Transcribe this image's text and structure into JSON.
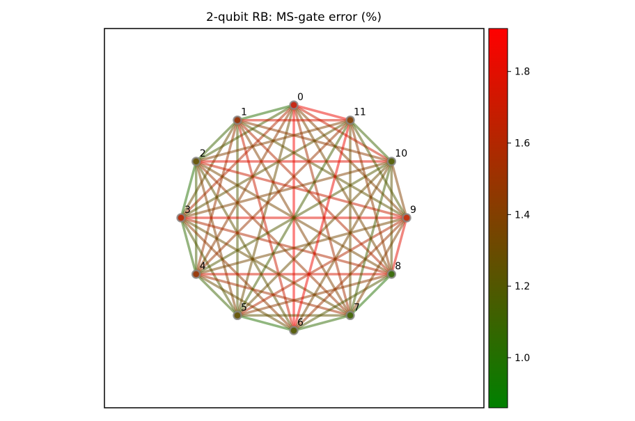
{
  "title": "2-qubit RB: MS-gate error (%)",
  "nodes": [
    "0",
    "1",
    "2",
    "3",
    "4",
    "5",
    "6",
    "7",
    "8",
    "9",
    "10",
    "11"
  ],
  "node_colors": {
    "0": "#c62a16",
    "1": "#9a3a10",
    "2": "#6b5a10",
    "3": "#b8320f",
    "4": "#9a3d10",
    "5": "#6a5a10",
    "6": "#5a6010",
    "7": "#4a6a10",
    "8": "#3f6e12",
    "9": "#c43614",
    "10": "#5a6410",
    "11": "#8a4a12"
  },
  "colorbar": {
    "min": 0.86,
    "max": 1.92,
    "low_color": "#008000",
    "high_color": "#ff0000",
    "ticks": [
      "1.0",
      "1.2",
      "1.4",
      "1.6",
      "1.8"
    ],
    "tick_values": [
      1.0,
      1.2,
      1.4,
      1.6,
      1.8
    ]
  },
  "edges": [
    [
      0,
      1,
      1.02
    ],
    [
      0,
      2,
      1.15
    ],
    [
      0,
      3,
      1.6
    ],
    [
      0,
      4,
      1.45
    ],
    [
      0,
      5,
      1.3
    ],
    [
      0,
      6,
      1.9
    ],
    [
      0,
      7,
      1.55
    ],
    [
      0,
      8,
      1.35
    ],
    [
      0,
      9,
      1.4
    ],
    [
      0,
      10,
      1.7
    ],
    [
      0,
      11,
      1.85
    ],
    [
      1,
      2,
      1.1
    ],
    [
      1,
      3,
      1.3
    ],
    [
      1,
      4,
      1.5
    ],
    [
      1,
      5,
      1.2
    ],
    [
      1,
      6,
      1.7
    ],
    [
      1,
      7,
      1.4
    ],
    [
      1,
      8,
      1.6
    ],
    [
      1,
      9,
      1.25
    ],
    [
      1,
      10,
      1.45
    ],
    [
      1,
      11,
      1.75
    ],
    [
      2,
      3,
      1.0
    ],
    [
      2,
      4,
      1.15
    ],
    [
      2,
      5,
      1.4
    ],
    [
      2,
      6,
      1.25
    ],
    [
      2,
      7,
      1.5
    ],
    [
      2,
      8,
      1.35
    ],
    [
      2,
      9,
      1.7
    ],
    [
      2,
      10,
      1.8
    ],
    [
      2,
      11,
      1.4
    ],
    [
      3,
      4,
      1.05
    ],
    [
      3,
      5,
      1.2
    ],
    [
      3,
      6,
      1.45
    ],
    [
      3,
      7,
      1.3
    ],
    [
      3,
      8,
      1.6
    ],
    [
      3,
      9,
      1.8
    ],
    [
      3,
      10,
      1.4
    ],
    [
      3,
      11,
      1.25
    ],
    [
      4,
      5,
      1.1
    ],
    [
      4,
      6,
      1.3
    ],
    [
      4,
      7,
      1.55
    ],
    [
      4,
      8,
      1.75
    ],
    [
      4,
      9,
      1.35
    ],
    [
      4,
      10,
      1.2
    ],
    [
      4,
      11,
      1.5
    ],
    [
      5,
      6,
      1.0
    ],
    [
      5,
      7,
      1.25
    ],
    [
      5,
      8,
      1.45
    ],
    [
      5,
      9,
      1.6
    ],
    [
      5,
      10,
      1.3
    ],
    [
      5,
      11,
      1.15
    ],
    [
      6,
      7,
      1.05
    ],
    [
      6,
      8,
      1.2
    ],
    [
      6,
      9,
      1.5
    ],
    [
      6,
      10,
      1.35
    ],
    [
      6,
      11,
      1.85
    ],
    [
      7,
      8,
      1.0
    ],
    [
      7,
      9,
      1.4
    ],
    [
      7,
      10,
      1.15
    ],
    [
      7,
      11,
      1.3
    ],
    [
      8,
      9,
      1.8
    ],
    [
      8,
      10,
      1.25
    ],
    [
      8,
      11,
      1.45
    ],
    [
      9,
      10,
      1.4
    ],
    [
      9,
      11,
      1.2
    ],
    [
      10,
      11,
      1.1
    ]
  ]
}
